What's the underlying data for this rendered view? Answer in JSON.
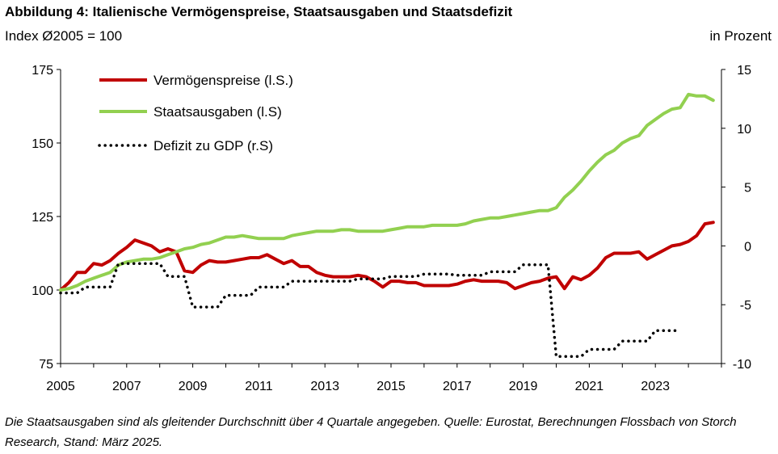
{
  "title": "Abbildung 4: Italienische Vermögenspreise, Staatsausgaben und Staatsdefizit",
  "left_unit": "Index Ø2005 = 100",
  "right_unit": "in Prozent",
  "footnote": "Die Staatsausgaben sind als gleitender Durchschnitt über 4 Quartale angegeben. Quelle: Eurostat, Berechnungen Flossbach von Storch Research, Stand: März 2025.",
  "chart_data": {
    "type": "line",
    "title": "Italienische Vermögenspreise, Staatsausgaben und Staatsdefizit",
    "xlim": [
      2005,
      2025
    ],
    "x_ticks": [
      "2005",
      "2007",
      "2009",
      "2011",
      "2013",
      "2015",
      "2017",
      "2019",
      "2021",
      "2023"
    ],
    "x_tick_values": [
      2005,
      2007,
      2009,
      2011,
      2013,
      2015,
      2017,
      2019,
      2021,
      2023
    ],
    "ylim_left": [
      75,
      175
    ],
    "yticks_left": [
      "75",
      "100",
      "125",
      "150",
      "175"
    ],
    "ytick_values_left": [
      75,
      100,
      125,
      150,
      175
    ],
    "ylim_right": [
      -10,
      15
    ],
    "yticks_right": [
      "-10",
      "-5",
      "0",
      "5",
      "10",
      "15"
    ],
    "ytick_values_right": [
      -10,
      -5,
      0,
      5,
      10,
      15
    ],
    "legend": [
      "Vermögenspreise (l.S.)",
      "Staatsausgaben (l.S)",
      "Defizit zu GDP (r.S)"
    ],
    "legend_position": "top-left",
    "series": [
      {
        "name": "Vermögenspreise (l.S.)",
        "axis": "left",
        "color": "#c00000",
        "style": "solid",
        "points": [
          [
            2005.0,
            100
          ],
          [
            2005.25,
            102.5
          ],
          [
            2005.5,
            106
          ],
          [
            2005.75,
            106
          ],
          [
            2006.0,
            109
          ],
          [
            2006.25,
            108.5
          ],
          [
            2006.5,
            110
          ],
          [
            2006.75,
            112.5
          ],
          [
            2007.0,
            114.5
          ],
          [
            2007.25,
            117
          ],
          [
            2007.5,
            116
          ],
          [
            2007.75,
            115
          ],
          [
            2008.0,
            113
          ],
          [
            2008.25,
            114
          ],
          [
            2008.5,
            113
          ],
          [
            2008.75,
            106.5
          ],
          [
            2009.0,
            106
          ],
          [
            2009.25,
            108.5
          ],
          [
            2009.5,
            110
          ],
          [
            2009.75,
            109.5
          ],
          [
            2010.0,
            109.5
          ],
          [
            2010.25,
            110
          ],
          [
            2010.5,
            110.5
          ],
          [
            2010.75,
            111
          ],
          [
            2011.0,
            111
          ],
          [
            2011.25,
            112
          ],
          [
            2011.5,
            110.5
          ],
          [
            2011.75,
            109
          ],
          [
            2012.0,
            110
          ],
          [
            2012.25,
            108
          ],
          [
            2012.5,
            108
          ],
          [
            2012.75,
            106
          ],
          [
            2013.0,
            105
          ],
          [
            2013.25,
            104.5
          ],
          [
            2013.5,
            104.5
          ],
          [
            2013.75,
            104.5
          ],
          [
            2014.0,
            105
          ],
          [
            2014.25,
            104.5
          ],
          [
            2014.5,
            103
          ],
          [
            2014.75,
            101
          ],
          [
            2015.0,
            103
          ],
          [
            2015.25,
            103
          ],
          [
            2015.5,
            102.5
          ],
          [
            2015.75,
            102.5
          ],
          [
            2016.0,
            101.5
          ],
          [
            2016.25,
            101.5
          ],
          [
            2016.5,
            101.5
          ],
          [
            2016.75,
            101.5
          ],
          [
            2017.0,
            102
          ],
          [
            2017.25,
            103
          ],
          [
            2017.5,
            103.5
          ],
          [
            2017.75,
            103
          ],
          [
            2018.0,
            103
          ],
          [
            2018.25,
            103
          ],
          [
            2018.5,
            102.5
          ],
          [
            2018.75,
            100.5
          ],
          [
            2019.0,
            101.5
          ],
          [
            2019.25,
            102.5
          ],
          [
            2019.5,
            103
          ],
          [
            2019.75,
            104
          ],
          [
            2020.0,
            104.5
          ],
          [
            2020.25,
            100.5
          ],
          [
            2020.5,
            104.5
          ],
          [
            2020.75,
            103.5
          ],
          [
            2021.0,
            105
          ],
          [
            2021.25,
            107.5
          ],
          [
            2021.5,
            111
          ],
          [
            2021.75,
            112.5
          ],
          [
            2022.0,
            112.5
          ],
          [
            2022.25,
            112.5
          ],
          [
            2022.5,
            113
          ],
          [
            2022.75,
            110.5
          ],
          [
            2023.0,
            112
          ],
          [
            2023.25,
            113.5
          ],
          [
            2023.5,
            115
          ],
          [
            2023.75,
            115.5
          ],
          [
            2024.0,
            116.5
          ],
          [
            2024.25,
            118.5
          ],
          [
            2024.5,
            122.5
          ],
          [
            2024.75,
            123
          ]
        ]
      },
      {
        "name": "Staatsausgaben (l.S)",
        "axis": "left",
        "color": "#92d050",
        "style": "solid",
        "points": [
          [
            2005.0,
            100
          ],
          [
            2005.25,
            100.5
          ],
          [
            2005.5,
            101.5
          ],
          [
            2005.75,
            103
          ],
          [
            2006.0,
            104
          ],
          [
            2006.25,
            105
          ],
          [
            2006.5,
            106
          ],
          [
            2006.75,
            108.5
          ],
          [
            2007.0,
            109.5
          ],
          [
            2007.25,
            110
          ],
          [
            2007.5,
            110.5
          ],
          [
            2007.75,
            110.5
          ],
          [
            2008.0,
            111
          ],
          [
            2008.25,
            112
          ],
          [
            2008.5,
            113
          ],
          [
            2008.75,
            114
          ],
          [
            2009.0,
            114.5
          ],
          [
            2009.25,
            115.5
          ],
          [
            2009.5,
            116
          ],
          [
            2009.75,
            117
          ],
          [
            2010.0,
            118
          ],
          [
            2010.25,
            118
          ],
          [
            2010.5,
            118.5
          ],
          [
            2010.75,
            118
          ],
          [
            2011.0,
            117.5
          ],
          [
            2011.25,
            117.5
          ],
          [
            2011.5,
            117.5
          ],
          [
            2011.75,
            117.5
          ],
          [
            2012.0,
            118.5
          ],
          [
            2012.25,
            119
          ],
          [
            2012.5,
            119.5
          ],
          [
            2012.75,
            120
          ],
          [
            2013.0,
            120
          ],
          [
            2013.25,
            120
          ],
          [
            2013.5,
            120.5
          ],
          [
            2013.75,
            120.5
          ],
          [
            2014.0,
            120
          ],
          [
            2014.25,
            120
          ],
          [
            2014.5,
            120
          ],
          [
            2014.75,
            120
          ],
          [
            2015.0,
            120.5
          ],
          [
            2015.25,
            121
          ],
          [
            2015.5,
            121.5
          ],
          [
            2015.75,
            121.5
          ],
          [
            2016.0,
            121.5
          ],
          [
            2016.25,
            122
          ],
          [
            2016.5,
            122
          ],
          [
            2016.75,
            122
          ],
          [
            2017.0,
            122
          ],
          [
            2017.25,
            122.5
          ],
          [
            2017.5,
            123.5
          ],
          [
            2017.75,
            124
          ],
          [
            2018.0,
            124.5
          ],
          [
            2018.25,
            124.5
          ],
          [
            2018.5,
            125
          ],
          [
            2018.75,
            125.5
          ],
          [
            2019.0,
            126
          ],
          [
            2019.25,
            126.5
          ],
          [
            2019.5,
            127
          ],
          [
            2019.75,
            127
          ],
          [
            2020.0,
            128
          ],
          [
            2020.25,
            131.5
          ],
          [
            2020.5,
            134
          ],
          [
            2020.75,
            137
          ],
          [
            2021.0,
            140.5
          ],
          [
            2021.25,
            143.5
          ],
          [
            2021.5,
            146
          ],
          [
            2021.75,
            147.5
          ],
          [
            2022.0,
            150
          ],
          [
            2022.25,
            151.5
          ],
          [
            2022.5,
            152.5
          ],
          [
            2022.75,
            156
          ],
          [
            2023.0,
            158
          ],
          [
            2023.25,
            160
          ],
          [
            2023.5,
            161.5
          ],
          [
            2023.75,
            162
          ],
          [
            2024.0,
            166.5
          ],
          [
            2024.25,
            166
          ],
          [
            2024.5,
            166
          ],
          [
            2024.75,
            164.5
          ]
        ]
      },
      {
        "name": "Defizit zu GDP (r.S)",
        "axis": "right",
        "color": "#000000",
        "style": "dotted",
        "points": [
          [
            2005.0,
            -4
          ],
          [
            2005.5,
            -4
          ],
          [
            2005.75,
            -3.5
          ],
          [
            2006.5,
            -3.5
          ],
          [
            2006.75,
            -1.5
          ],
          [
            2008.0,
            -1.5
          ],
          [
            2008.25,
            -2.6
          ],
          [
            2008.75,
            -2.6
          ],
          [
            2009.0,
            -5.2
          ],
          [
            2009.75,
            -5.2
          ],
          [
            2010.0,
            -4.2
          ],
          [
            2010.75,
            -4.2
          ],
          [
            2011.0,
            -3.5
          ],
          [
            2011.75,
            -3.5
          ],
          [
            2012.0,
            -3
          ],
          [
            2013.75,
            -3
          ],
          [
            2014.0,
            -2.8
          ],
          [
            2014.75,
            -2.8
          ],
          [
            2015.0,
            -2.6
          ],
          [
            2015.75,
            -2.6
          ],
          [
            2016.0,
            -2.4
          ],
          [
            2016.75,
            -2.4
          ],
          [
            2017.0,
            -2.5
          ],
          [
            2017.75,
            -2.5
          ],
          [
            2018.0,
            -2.2
          ],
          [
            2018.75,
            -2.2
          ],
          [
            2019.0,
            -1.6
          ],
          [
            2019.75,
            -1.6
          ],
          [
            2020.0,
            -9.4
          ],
          [
            2020.75,
            -9.4
          ],
          [
            2021.0,
            -8.8
          ],
          [
            2021.75,
            -8.8
          ],
          [
            2022.0,
            -8.1
          ],
          [
            2022.75,
            -8.1
          ],
          [
            2023.0,
            -7.2
          ],
          [
            2023.75,
            -7.2
          ]
        ]
      }
    ]
  }
}
